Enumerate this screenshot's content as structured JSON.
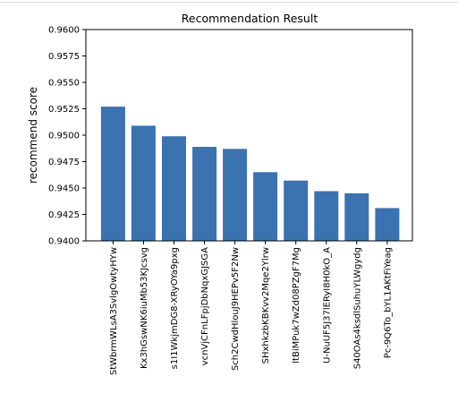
{
  "chart_data": {
    "type": "bar",
    "title": "Recommendation Result",
    "xlabel": "",
    "ylabel": "recommend score",
    "ylim": [
      0.94,
      0.96
    ],
    "yticks": [
      "0.9400",
      "0.9425",
      "0.9450",
      "0.9475",
      "0.9500",
      "0.9525",
      "0.9550",
      "0.9575",
      "0.9600"
    ],
    "categories": [
      "StWbrmWLsA3SvlgOwtyHYw",
      "Kx3hGswNK6iuMb53KJcsvg",
      "s1I1WkjmDG8-XRyOYa9pxg",
      "vcnVjCFnLFpjDbNqxGJSGA",
      "Sch2CwdHlouJ9HEPv5F2Nw",
      "SHxhkzbKBKvv2Mqe2Ylrw",
      "ltBiMPuk7wZd08PZgF7Mg",
      "U-NuUF5J37lERyI8H0kO_A",
      "S40OAs4ksdlSuhuYLWgydg",
      "Pc-9Q6To_bYL1AKtFiYeag"
    ],
    "values": [
      0.9527,
      0.9509,
      0.9499,
      0.9489,
      0.9487,
      0.9465,
      0.9457,
      0.9447,
      0.9445,
      0.9431
    ],
    "bar_color": "#3a73b0",
    "grid": false,
    "legend": "none"
  }
}
